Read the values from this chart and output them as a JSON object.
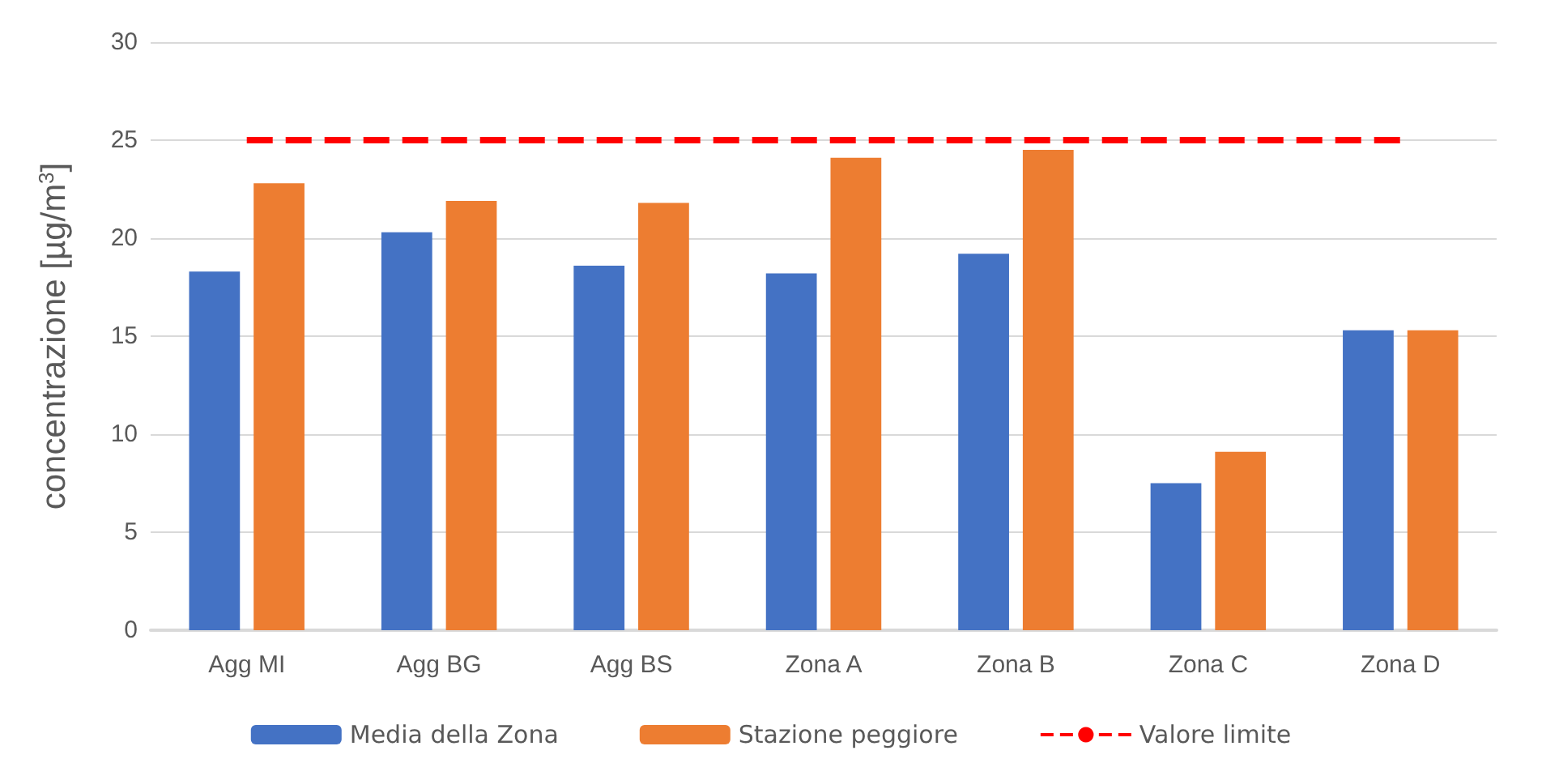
{
  "chart_data": {
    "type": "bar",
    "ylabel": "concentrazione [µg/m$^{3}$]",
    "categories": [
      "Agg MI",
      "Agg BG",
      "Agg BS",
      "Zona A",
      "Zona B",
      "Zona C",
      "Zona D"
    ],
    "series": [
      {
        "name": "Media della Zona",
        "color": "#4472c4",
        "values": [
          18.3,
          20.3,
          18.6,
          18.2,
          19.2,
          7.5,
          15.3
        ]
      },
      {
        "name": "Stazione peggiore",
        "color": "#ed7d31",
        "values": [
          22.8,
          21.9,
          21.8,
          24.1,
          24.5,
          9.1,
          15.3
        ]
      },
      {
        "name": "Valore limite",
        "type": "line",
        "color": "#ff0000",
        "line_style": "dashed",
        "marker": "none",
        "values": [
          25,
          25,
          25,
          25,
          25,
          25,
          25
        ]
      }
    ],
    "ylim": [
      0,
      30
    ],
    "yticks": [
      0,
      5,
      10,
      15,
      20,
      25,
      30
    ],
    "grid": "y",
    "legend": "bottom"
  }
}
